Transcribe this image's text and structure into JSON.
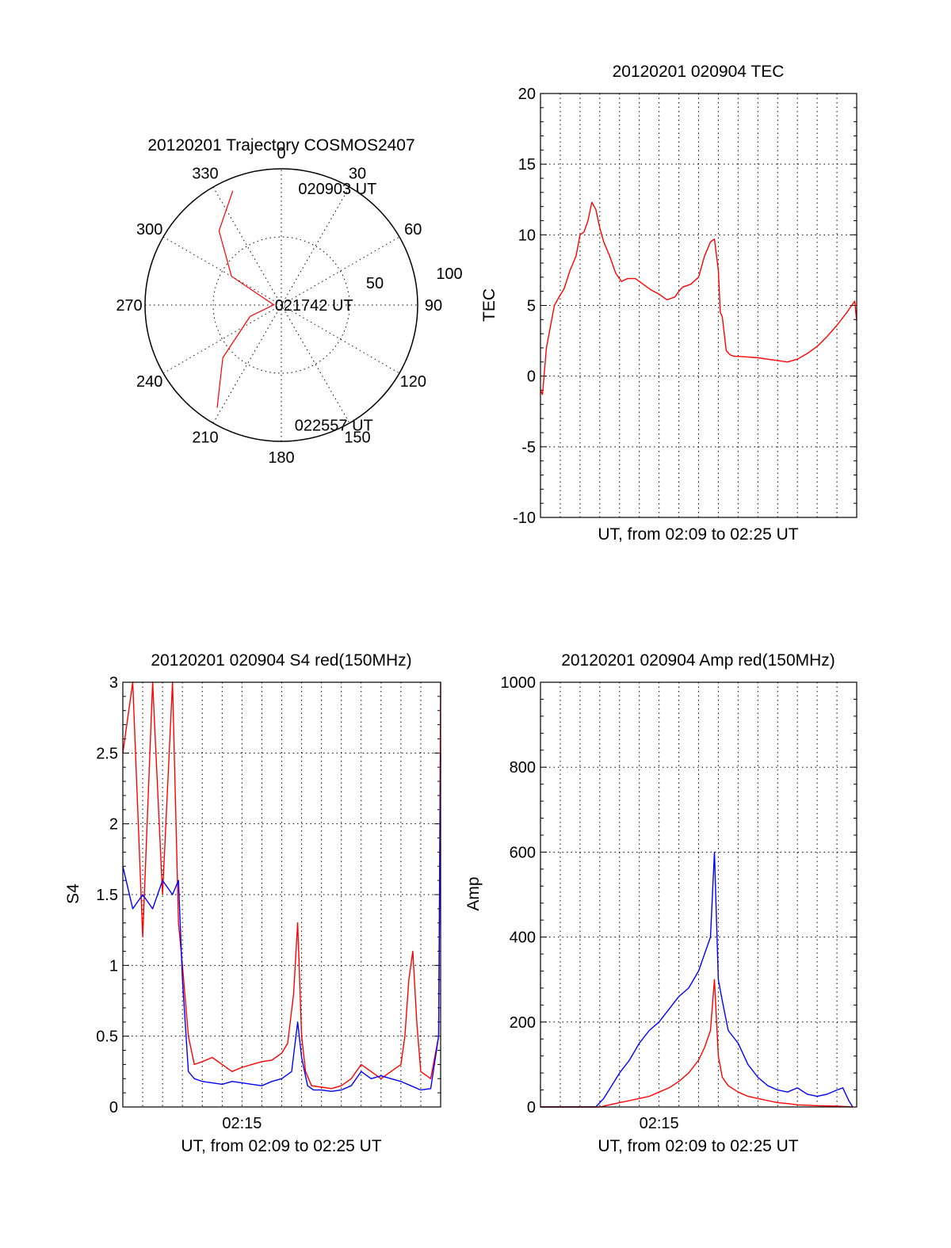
{
  "chart_data": [
    {
      "type": "polar",
      "title": "20120201 Trajectory COSMOS2407",
      "angle_labels": [
        "0",
        "30",
        "60",
        "90",
        "120",
        "150",
        "180",
        "210",
        "240",
        "270",
        "300",
        "330"
      ],
      "radial_labels": [
        "50",
        "100"
      ],
      "series": [
        {
          "color": "#ff0000",
          "points": [
            {
              "az": 337,
              "el": 8
            },
            {
              "az": 320,
              "el": 26
            },
            {
              "az": 300,
              "el": 52
            },
            {
              "az": 272,
              "el": 85
            },
            {
              "az": 250,
              "el": 68
            },
            {
              "az": 228,
              "el": 38
            },
            {
              "az": 212,
              "el": 10
            }
          ]
        }
      ],
      "annotations": [
        {
          "text": "020903 UT",
          "az": 10,
          "el": 12
        },
        {
          "text": "021742 UT",
          "az": 272,
          "el": 88
        },
        {
          "text": "022557 UT",
          "az": 172,
          "el": 10
        }
      ]
    },
    {
      "type": "line",
      "title": "20120201 020904 TEC",
      "xlabel": "UT, from 02:09 to 02:25 UT",
      "ylabel": "TEC",
      "xlim": [
        0,
        16
      ],
      "ylim": [
        -10,
        20
      ],
      "yticks": [
        "-10",
        "-5",
        "0",
        "5",
        "10",
        "15",
        "20"
      ],
      "grid": true,
      "series": [
        {
          "color": "#ff0000",
          "x": [
            0,
            0.1,
            0.3,
            0.5,
            0.7,
            0.9,
            1.2,
            1.5,
            1.8,
            2.0,
            2.2,
            2.4,
            2.6,
            2.8,
            3.0,
            3.2,
            3.5,
            3.8,
            4.1,
            4.4,
            4.8,
            5.2,
            5.6,
            6.0,
            6.4,
            6.8,
            7.0,
            7.2,
            7.6,
            8.0,
            8.3,
            8.6,
            8.8,
            9.0,
            9.1,
            9.2,
            9.4,
            9.6,
            9.8,
            10,
            10.5,
            11,
            11.5,
            12,
            12.5,
            13,
            13.5,
            14,
            14.5,
            15,
            15.5,
            15.9,
            16
          ],
          "y": [
            -1,
            -1.3,
            2,
            3.5,
            5,
            5.5,
            6.2,
            7.5,
            8.5,
            10,
            10.2,
            11,
            12.3,
            11.8,
            10.5,
            9.5,
            8.5,
            7.3,
            6.7,
            6.9,
            6.9,
            6.5,
            6.1,
            5.8,
            5.4,
            5.6,
            6.0,
            6.3,
            6.5,
            7.0,
            8.5,
            9.5,
            9.7,
            7.5,
            4.5,
            4.2,
            1.8,
            1.5,
            1.4,
            1.4,
            1.35,
            1.3,
            1.2,
            1.1,
            1.0,
            1.2,
            1.6,
            2.1,
            2.8,
            3.6,
            4.5,
            5.3,
            3.9
          ]
        }
      ]
    },
    {
      "type": "line",
      "title": "20120201 020904 S4 red(150MHz)",
      "xlabel": "UT, from 02:09 to 02:25 UT",
      "ylabel": "S4",
      "xlim": [
        0,
        16
      ],
      "ylim": [
        0,
        3
      ],
      "yticks": [
        "0",
        "0.5",
        "1",
        "1.5",
        "2",
        "2.5",
        "3"
      ],
      "xticks": [
        {
          "x": 6,
          "label": "02:15"
        }
      ],
      "grid": true,
      "series": [
        {
          "color": "#ff0000",
          "x": [
            0,
            0.5,
            1.0,
            1.5,
            2.0,
            2.5,
            2.8,
            3.0,
            3.3,
            3.6,
            4.0,
            4.5,
            5.0,
            5.5,
            6.0,
            6.5,
            7.0,
            7.5,
            8.0,
            8.3,
            8.6,
            8.8,
            8.9,
            9.0,
            9.2,
            9.5,
            10,
            10.5,
            11,
            11.5,
            12,
            12.5,
            13,
            13.5,
            14,
            14.2,
            14.4,
            14.6,
            14.8,
            15,
            15.5,
            15.9,
            16
          ],
          "y": [
            2.5,
            3,
            1.2,
            3,
            1.5,
            3,
            1.3,
            1.0,
            0.5,
            0.3,
            0.32,
            0.35,
            0.3,
            0.25,
            0.28,
            0.3,
            0.32,
            0.33,
            0.38,
            0.45,
            0.8,
            1.3,
            0.9,
            0.5,
            0.25,
            0.15,
            0.14,
            0.13,
            0.15,
            0.2,
            0.3,
            0.25,
            0.2,
            0.25,
            0.3,
            0.5,
            0.9,
            1.1,
            0.6,
            0.25,
            0.2,
            0.5,
            3
          ]
        },
        {
          "color": "#0000ff",
          "x": [
            0,
            0.5,
            1.0,
            1.5,
            2.0,
            2.5,
            2.8,
            3.0,
            3.3,
            3.6,
            4.0,
            4.5,
            5.0,
            5.5,
            6.0,
            6.5,
            7.0,
            7.5,
            8.0,
            8.5,
            8.8,
            9.0,
            9.3,
            9.6,
            10,
            10.5,
            11,
            11.5,
            12,
            12.5,
            13,
            13.5,
            14,
            14.5,
            15,
            15.5,
            15.9,
            16
          ],
          "y": [
            1.7,
            1.4,
            1.5,
            1.4,
            1.6,
            1.5,
            1.6,
            0.9,
            0.25,
            0.2,
            0.18,
            0.17,
            0.16,
            0.18,
            0.17,
            0.16,
            0.15,
            0.18,
            0.2,
            0.25,
            0.6,
            0.35,
            0.15,
            0.12,
            0.12,
            0.11,
            0.12,
            0.15,
            0.25,
            0.2,
            0.22,
            0.2,
            0.18,
            0.15,
            0.12,
            0.13,
            0.5,
            2.5
          ]
        }
      ]
    },
    {
      "type": "line",
      "title": "20120201 020904 Amp red(150MHz)",
      "xlabel": "UT, from 02:09 to 02:25 UT",
      "ylabel": "Amp",
      "xlim": [
        0,
        16
      ],
      "ylim": [
        0,
        1000
      ],
      "yticks": [
        "0",
        "200",
        "400",
        "600",
        "800",
        "1000"
      ],
      "xticks": [
        {
          "x": 6,
          "label": "02:15"
        }
      ],
      "grid": true,
      "series": [
        {
          "color": "#0000ff",
          "x": [
            0,
            1,
            2,
            2.8,
            3.2,
            3.6,
            4.0,
            4.5,
            5.0,
            5.5,
            6.0,
            6.5,
            7.0,
            7.5,
            8.0,
            8.3,
            8.6,
            8.8,
            9.0,
            9.2,
            9.5,
            10,
            10.5,
            11,
            11.5,
            12,
            12.5,
            13,
            13.5,
            14,
            14.5,
            15,
            15.3,
            15.6,
            15.8
          ],
          "y": [
            0,
            0,
            0,
            0,
            20,
            50,
            80,
            110,
            150,
            180,
            200,
            230,
            260,
            280,
            320,
            360,
            400,
            600,
            300,
            250,
            180,
            150,
            100,
            70,
            50,
            40,
            35,
            45,
            30,
            25,
            30,
            40,
            45,
            15,
            0
          ]
        },
        {
          "color": "#ff0000",
          "x": [
            0,
            1,
            2,
            3,
            3.5,
            4.0,
            4.5,
            5.0,
            5.5,
            6.0,
            6.5,
            7.0,
            7.5,
            8.0,
            8.3,
            8.6,
            8.8,
            9.0,
            9.2,
            9.5,
            10,
            10.5,
            11,
            11.5,
            12,
            12.5,
            13,
            14,
            15,
            15.8
          ],
          "y": [
            0,
            0,
            0,
            0,
            5,
            10,
            15,
            20,
            25,
            35,
            45,
            60,
            80,
            110,
            140,
            180,
            300,
            120,
            70,
            50,
            35,
            25,
            20,
            15,
            10,
            8,
            5,
            3,
            2,
            0
          ]
        }
      ]
    }
  ]
}
